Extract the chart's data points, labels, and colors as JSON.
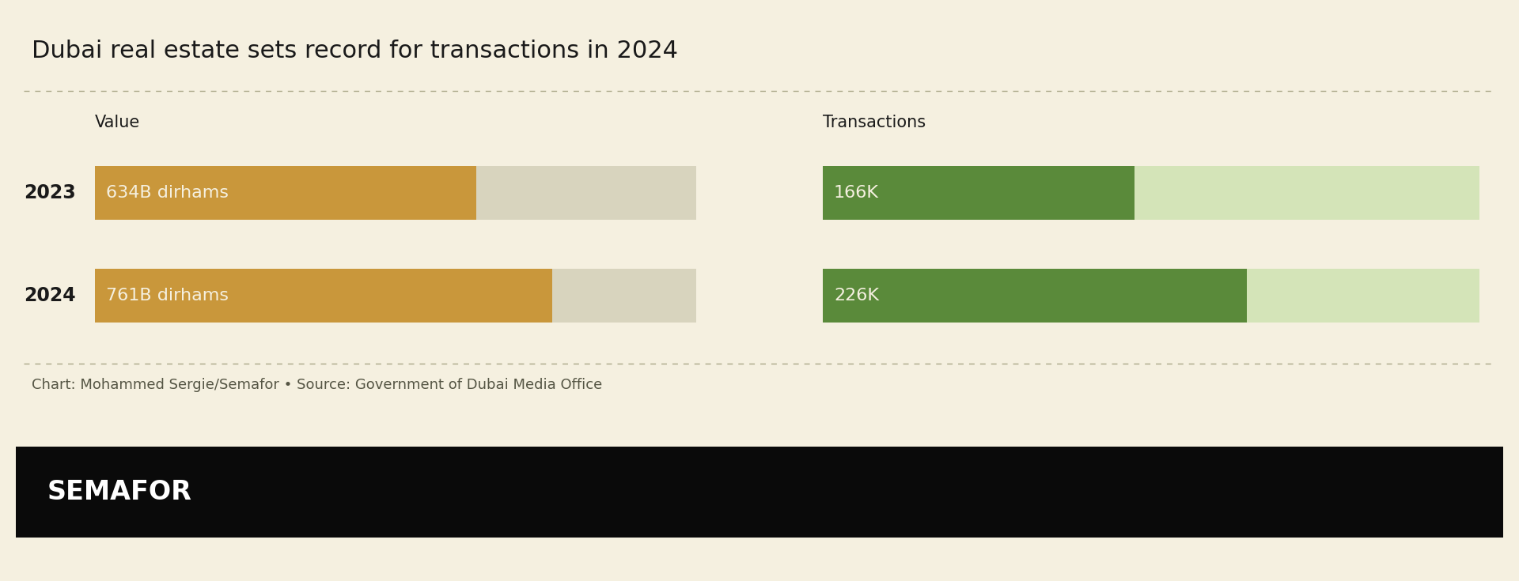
{
  "title": "Dubai real estate sets record for transactions in 2024",
  "background_color": "#f5f0e0",
  "black_bar_color": "#0a0a0a",
  "semafor_text": "SEMAFOR",
  "caption": "Chart: Mohammed Sergie/Semafor • Source: Government of Dubai Media Office",
  "years": [
    "2023",
    "2024"
  ],
  "value_label": "Value",
  "transactions_label": "Transactions",
  "value_data": [
    634,
    761
  ],
  "value_max": 1000,
  "value_labels": [
    "634B dirhams",
    "761B dirhams"
  ],
  "transactions_data": [
    166,
    226
  ],
  "transactions_max": 350,
  "transactions_labels": [
    "166K",
    "226K"
  ],
  "value_bar_color": "#c9973b",
  "value_bg_color": "#d8d4be",
  "transactions_bar_color": "#5a8a3a",
  "transactions_bg_color": "#d4e4b8",
  "bar_text_color": "#f5f0e0",
  "title_color": "#1a1a1a",
  "caption_color": "#555544",
  "year_label_color": "#1a1a1a",
  "section_label_color": "#1a1a1a",
  "title_fontsize": 22,
  "section_label_fontsize": 15,
  "year_fontsize": 17,
  "bar_label_fontsize": 16,
  "caption_fontsize": 13,
  "semafor_fontsize": 24
}
